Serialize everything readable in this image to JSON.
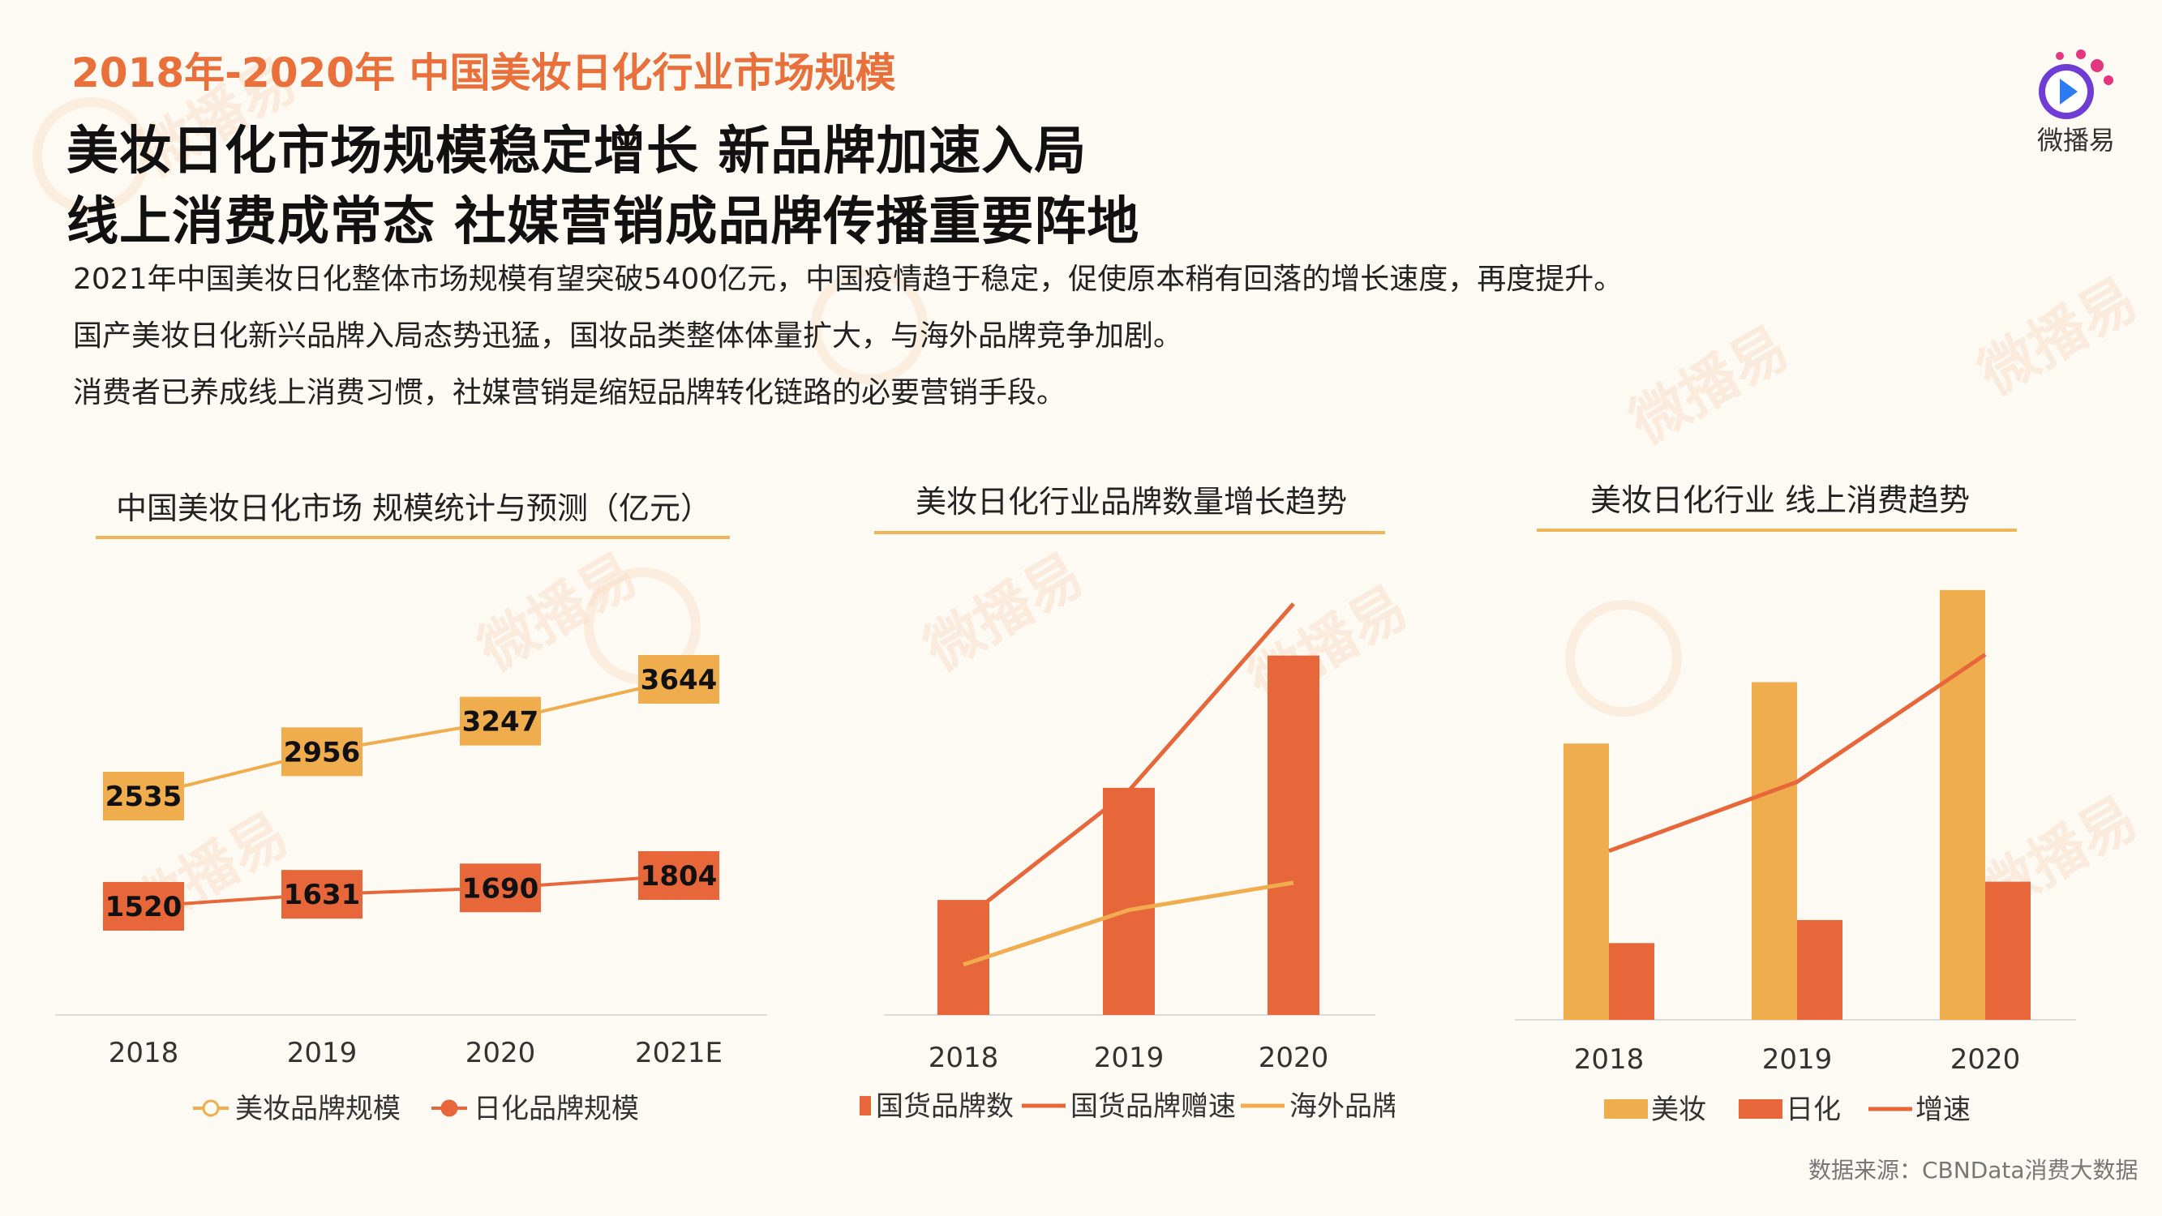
{
  "header": {
    "kicker": "2018年-2020年 中国美妆日化行业市场规模",
    "headline_line1": "美妆日化市场规模稳定增长 新品牌加速入局",
    "headline_line2": "线上消费成常态 社媒营销成品牌传播重要阵地",
    "paragraphs": [
      "2021年中国美妆日化整体市场规模有望突破5400亿元，中国疫情趋于稳定，促使原本稍有回落的增长速度，再度提升。",
      "国产美妆日化新兴品牌入局态势迅猛，国妆品类整体体量扩大，与海外品牌竞争加剧。",
      "消费者已养成线上消费习惯，社媒营销是缩短品牌转化链路的必要营销手段。"
    ]
  },
  "logo": {
    "name": "微播易",
    "icon": "play-icon",
    "colors": [
      "#6f3cd6",
      "#e4357f",
      "#2b7bf3"
    ]
  },
  "watermark_text": "微播易",
  "source": "数据来源：CBNData消费大数据",
  "colors": {
    "accent": "#e9703a",
    "orange_dark": "#e8673a",
    "orange_light": "#f0ad4e",
    "rule": "#f0b459"
  },
  "chart_data": [
    {
      "type": "line",
      "title": "中国美妆日化市场 规模统计与预测（亿元）",
      "categories": [
        "2018",
        "2019",
        "2020",
        "2021E"
      ],
      "series": [
        {
          "name": "美妆品牌规模",
          "values": [
            2535,
            2956,
            3247,
            3644
          ],
          "color": "#f0ad4e"
        },
        {
          "name": "日化品牌规模",
          "values": [
            1520,
            1631,
            1690,
            1804
          ],
          "color": "#e8673a"
        }
      ],
      "data_labels": true,
      "legend": "bottom"
    },
    {
      "type": "bar",
      "title": "美妆日化行业品牌数量增长趋势",
      "categories": [
        "2018",
        "2019",
        "2020"
      ],
      "series": [
        {
          "name": "国货品牌数",
          "type": "bar",
          "values": [
            1800,
            2580,
            3500
          ],
          "color": "#e8673a"
        },
        {
          "name": "国货品牌赠速",
          "type": "line",
          "values": [
            1660,
            2560,
            3860
          ],
          "color": "#e8673a"
        },
        {
          "name": "海外品牌增速",
          "type": "line",
          "values": [
            1350,
            1730,
            1920
          ],
          "color": "#f0ad4e"
        }
      ],
      "ylim": [
        1000,
        4000
      ],
      "legend": "bottom"
    },
    {
      "type": "bar",
      "title": "美妆日化行业 线上消费趋势",
      "categories": [
        "2018",
        "2019",
        "2020"
      ],
      "series": [
        {
          "name": "美妆",
          "type": "bar",
          "values": [
            1800,
            2200,
            2800
          ],
          "color": "#f0ad4e"
        },
        {
          "name": "日化",
          "type": "bar",
          "values": [
            500,
            650,
            900
          ],
          "color": "#e8673a"
        },
        {
          "name": "增速",
          "type": "line",
          "values": [
            1100,
            1550,
            2380
          ],
          "color": "#e8673a"
        }
      ],
      "ylim": [
        0,
        3000
      ],
      "legend": "bottom"
    }
  ]
}
